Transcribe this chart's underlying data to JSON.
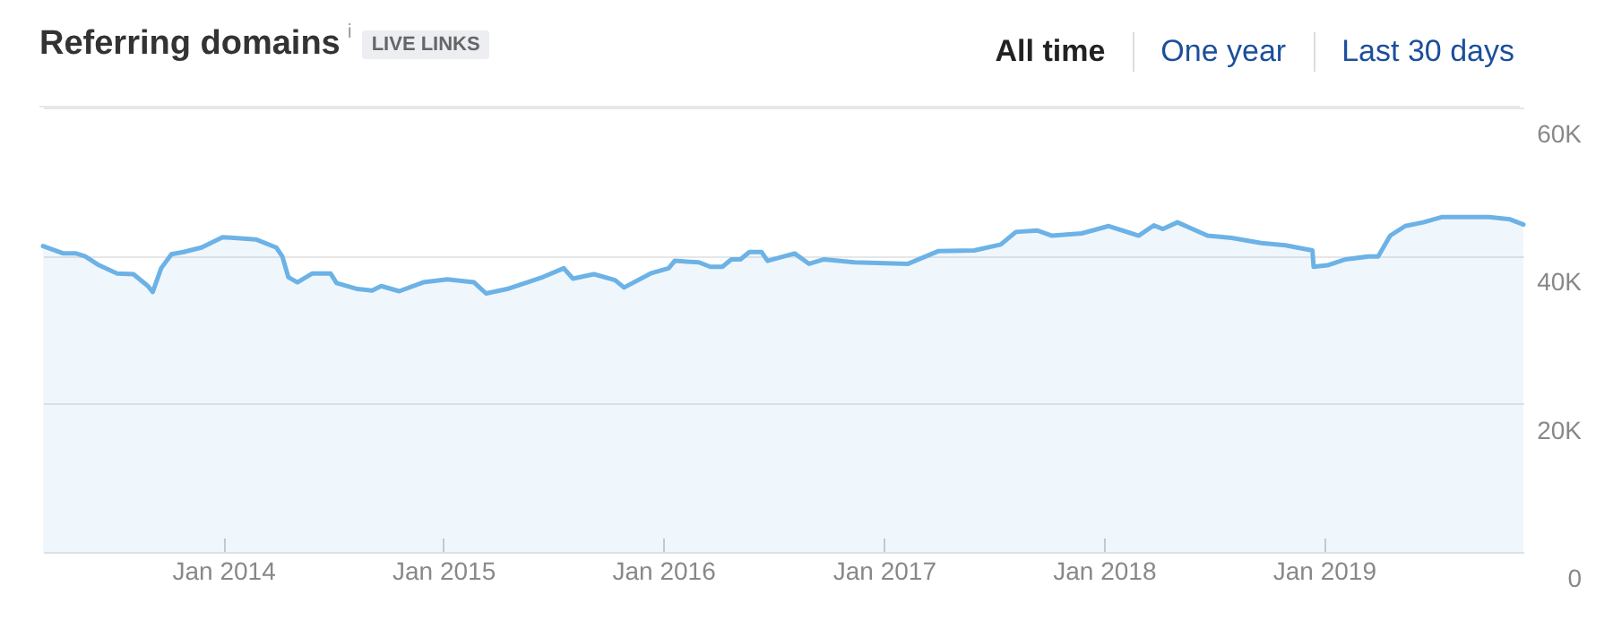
{
  "chart_data": {
    "type": "area",
    "title": "Referring domains",
    "annotations": [
      "i",
      "LIVE LINKS",
      "All time",
      "One year",
      "Last 30 days"
    ],
    "x": [
      "2013-03-08",
      "2013-04-11",
      "2013-05-02",
      "2013-05-17",
      "2013-06-09",
      "2013-07-09",
      "2013-08-05",
      "2013-08-29",
      "2013-09-06",
      "2013-09-20",
      "2013-10-07",
      "2013-10-27",
      "2013-11-26",
      "2013-12-31",
      "2014-02-24",
      "2014-03-30",
      "2014-04-09",
      "2014-04-19",
      "2014-05-04",
      "2014-05-29",
      "2014-06-28",
      "2014-07-08",
      "2014-08-12",
      "2014-09-05",
      "2014-09-20",
      "2014-10-20",
      "2014-11-29",
      "2015-01-08",
      "2015-02-21",
      "2015-03-13",
      "2015-04-17",
      "2015-06-15",
      "2015-07-20",
      "2015-08-04",
      "2015-09-08",
      "2015-10-13",
      "2015-10-28",
      "2015-12-11",
      "2016-01-10",
      "2016-01-20",
      "2016-02-29",
      "2016-03-19",
      "2016-04-08",
      "2016-04-23",
      "2016-05-08",
      "2016-05-23",
      "2016-06-12",
      "2016-06-22",
      "2016-08-06",
      "2016-08-30",
      "2016-09-24",
      "2016-11-13",
      "2017-02-10",
      "2017-04-01",
      "2017-05-31",
      "2017-07-14",
      "2017-08-08",
      "2017-09-12",
      "2017-10-07",
      "2017-11-25",
      "2018-01-09",
      "2018-02-28",
      "2018-03-25",
      "2018-04-09",
      "2018-05-03",
      "2018-06-22",
      "2018-08-01",
      "2018-09-19",
      "2018-10-29",
      "2018-12-13",
      "2018-12-15",
      "2019-01-07",
      "2019-02-06",
      "2019-03-17",
      "2019-04-01",
      "2019-04-21",
      "2019-05-16",
      "2019-06-15",
      "2019-07-15",
      "2019-10-02",
      "2019-11-06",
      "2019-11-28"
    ],
    "series": [
      {
        "color": "#6cb2e6",
        "values": [
          41300,
          40300,
          40300,
          39900,
          38700,
          37600,
          37500,
          35900,
          35100,
          38300,
          40200,
          40500,
          41100,
          42500,
          42200,
          41100,
          39900,
          37100,
          36400,
          37600,
          37600,
          36300,
          35500,
          35300,
          35900,
          35200,
          36400,
          36800,
          36400,
          34900,
          35500,
          37100,
          38300,
          36900,
          37500,
          36700,
          35700,
          37600,
          38300,
          39300,
          39100,
          38500,
          38500,
          39500,
          39500,
          40500,
          40500,
          39300,
          40300,
          38900,
          39500,
          39100,
          38900,
          40600,
          40700,
          41500,
          43200,
          43400,
          42700,
          43000,
          44000,
          42700,
          44100,
          43600,
          44500,
          42700,
          42400,
          41700,
          41400,
          40700,
          38500,
          38700,
          39500,
          39900,
          39900,
          42700,
          44000,
          44500,
          45200,
          45200,
          44900,
          44200
        ]
      }
    ],
    "xlim": [
      "2013-03-08",
      "2019-11-28"
    ],
    "xticks": [
      {
        "value": "2014-01-01",
        "label": "Jan 2014"
      },
      {
        "value": "2015-01-01",
        "label": "Jan 2015"
      },
      {
        "value": "2016-01-01",
        "label": "Jan 2016"
      },
      {
        "value": "2017-01-01",
        "label": "Jan 2017"
      },
      {
        "value": "2018-01-01",
        "label": "Jan 2018"
      },
      {
        "value": "2019-01-01",
        "label": "Jan 2019"
      }
    ],
    "ylim": [
      0,
      60000
    ],
    "yticks": [
      {
        "value": 0,
        "label": "0"
      },
      {
        "value": 20000,
        "label": "20K"
      },
      {
        "value": 40000,
        "label": "40K"
      },
      {
        "value": 60000,
        "label": "60K"
      }
    ],
    "grid": "y",
    "marker": "none",
    "line_style": "solid"
  }
}
